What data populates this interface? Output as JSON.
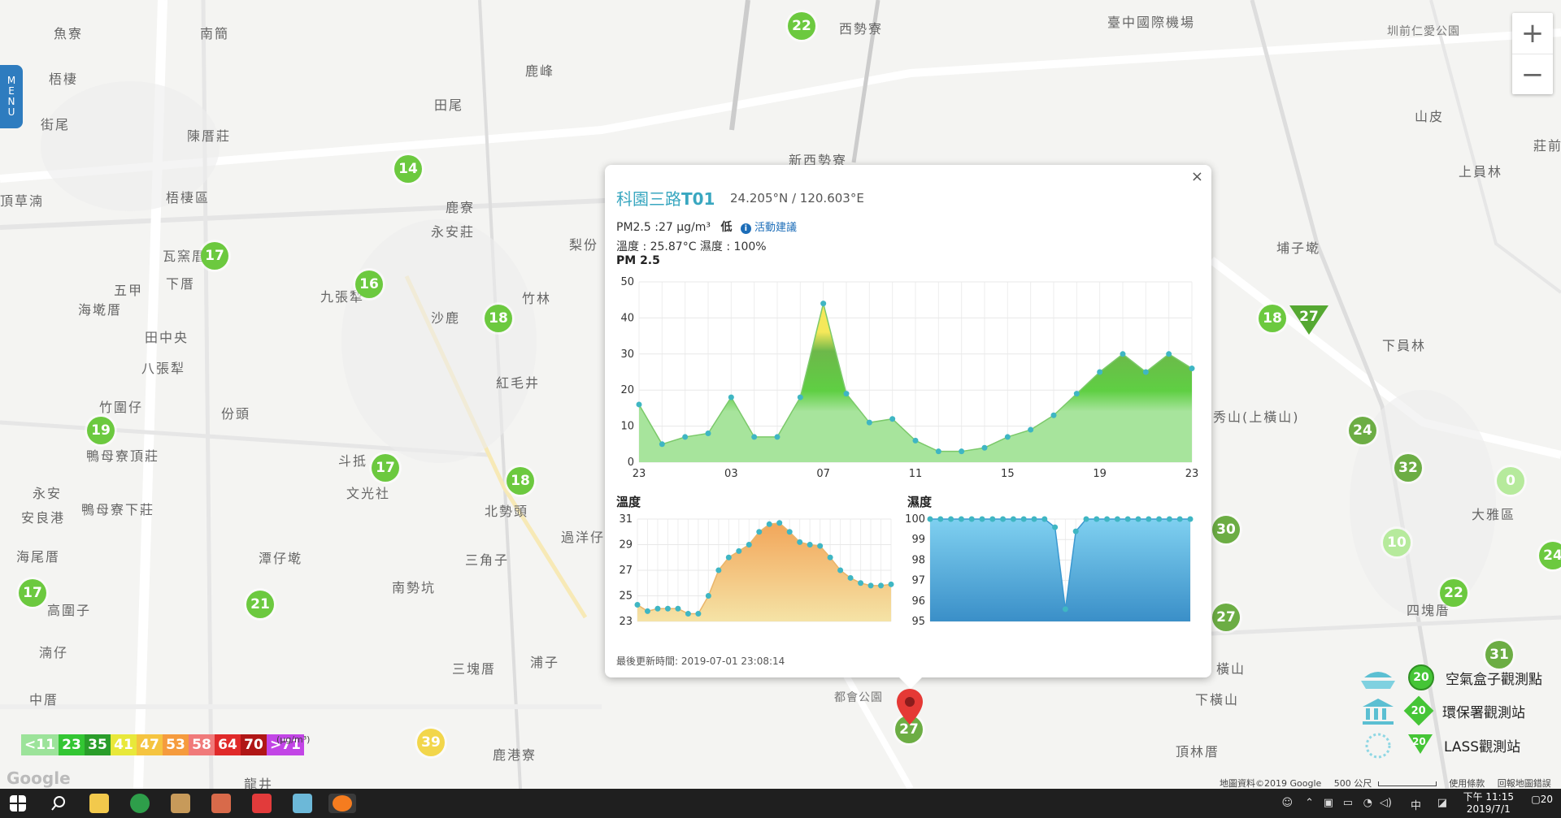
{
  "menu": {
    "label_chars": [
      "M",
      "E",
      "N",
      "U"
    ]
  },
  "zoom": {
    "in_label": "+",
    "out_label": "−"
  },
  "places": [
    {
      "name": "魚寮"
    },
    {
      "name": "南簡"
    },
    {
      "name": "西勢寮"
    },
    {
      "name": "臺中國際機場"
    },
    {
      "name": "圳前仁愛公園"
    },
    {
      "name": "梧棲"
    },
    {
      "name": "鹿峰"
    },
    {
      "name": "街尾"
    },
    {
      "name": "田尾"
    },
    {
      "name": "陳厝莊"
    },
    {
      "name": "新西勢寮"
    },
    {
      "name": "山皮"
    },
    {
      "name": "莊前"
    },
    {
      "name": "頂草湳"
    },
    {
      "name": "梧棲區"
    },
    {
      "name": "上員林"
    },
    {
      "name": "鹿寮"
    },
    {
      "name": "永安莊"
    },
    {
      "name": "梨份"
    },
    {
      "name": "瓦窯厝"
    },
    {
      "name": "埔子墘"
    },
    {
      "name": "五甲"
    },
    {
      "name": "下厝"
    },
    {
      "name": "海墘厝"
    },
    {
      "name": "九張犁"
    },
    {
      "name": "沙鹿"
    },
    {
      "name": "竹林"
    },
    {
      "name": "田中央"
    },
    {
      "name": "下員林"
    },
    {
      "name": "八張犁"
    },
    {
      "name": "紅毛井"
    },
    {
      "name": "竹圍仔"
    },
    {
      "name": "份頭"
    },
    {
      "name": "秀山(上橫山)"
    },
    {
      "name": "鴨母寮頂莊"
    },
    {
      "name": "斗抵"
    },
    {
      "name": "文光社"
    },
    {
      "name": "永安"
    },
    {
      "name": "北勢頭"
    },
    {
      "name": "大雅區"
    },
    {
      "name": "鴨母寮下莊"
    },
    {
      "name": "安良港"
    },
    {
      "name": "過洋仔"
    },
    {
      "name": "海尾厝"
    },
    {
      "name": "潭仔墘"
    },
    {
      "name": "三角子"
    },
    {
      "name": "南勢坑"
    },
    {
      "name": "高圍子"
    },
    {
      "name": "四塊厝"
    },
    {
      "name": "湳仔"
    },
    {
      "name": "三塊厝"
    },
    {
      "name": "浦子"
    },
    {
      "name": "中厝"
    },
    {
      "name": "鹿港寮"
    },
    {
      "name": "龍井"
    },
    {
      "name": "頂林厝"
    },
    {
      "name": "下橫山"
    },
    {
      "name": "都會公園"
    },
    {
      "name": "橫山"
    }
  ],
  "markers": [
    {
      "value": "22"
    },
    {
      "value": "14"
    },
    {
      "value": "17"
    },
    {
      "value": "16"
    },
    {
      "value": "18"
    },
    {
      "value": "18"
    },
    {
      "value": "18"
    },
    {
      "value": "27"
    },
    {
      "value": "19"
    },
    {
      "value": "17"
    },
    {
      "value": "17"
    },
    {
      "value": "21"
    },
    {
      "value": "39"
    },
    {
      "value": "24"
    },
    {
      "value": "32"
    },
    {
      "value": "0"
    },
    {
      "value": "10"
    },
    {
      "value": "30"
    },
    {
      "value": "27"
    },
    {
      "value": "22"
    },
    {
      "value": "31"
    },
    {
      "value": "27"
    },
    {
      "value": "24"
    }
  ],
  "popup": {
    "close": "×",
    "title_prefix": "科園三路",
    "title_id": "T01",
    "coords": "24.205°N / 120.603°E",
    "pm_text": "PM2.5 :27 µg/m³",
    "level": "低",
    "info_icon": "i",
    "advice": "活動建議",
    "temp_text": "溫度 : 25.87°C 濕度 : 100%",
    "pm_chart_title": "PM 2.5",
    "temp_chart_title": "溫度",
    "hum_chart_title": "濕度",
    "updated": "最後更新時間: 2019-07-01 23:08:14"
  },
  "chart_data": [
    {
      "type": "area",
      "title": "PM 2.5",
      "x": [
        "23",
        "00",
        "01",
        "02",
        "03",
        "04",
        "05",
        "06",
        "07",
        "08",
        "09",
        "10",
        "11",
        "12",
        "13",
        "14",
        "15",
        "16",
        "17",
        "18",
        "19",
        "20",
        "21",
        "22",
        "23"
      ],
      "xticks": [
        "23",
        "03",
        "07",
        "11",
        "15",
        "19",
        "23"
      ],
      "values": [
        16,
        5,
        7,
        8,
        18,
        7,
        7,
        18,
        44,
        19,
        11,
        12,
        6,
        3,
        3,
        4,
        7,
        9,
        13,
        19,
        25,
        30,
        25,
        30,
        26
      ],
      "ylim": [
        0,
        50
      ],
      "yticks": [
        0,
        10,
        20,
        30,
        40,
        50
      ],
      "colors": {
        "low": "#a7e49c",
        "mid": "#5fcf43",
        "high": "#f5e85a",
        "dot": "#3fb6c3"
      }
    },
    {
      "type": "area",
      "title": "溫度",
      "values": [
        24.3,
        23.8,
        24.0,
        24.0,
        24.0,
        23.6,
        23.6,
        25.0,
        27.0,
        28.0,
        28.5,
        29.0,
        30.0,
        30.6,
        30.7,
        30.0,
        29.2,
        29.0,
        28.9,
        28.0,
        27.0,
        26.4,
        26.0,
        25.8,
        25.8,
        25.9
      ],
      "ylim": [
        23,
        31
      ],
      "yticks": [
        23,
        25,
        27,
        29,
        31
      ],
      "colors": {
        "fill": "#f4bf75",
        "dot": "#3fb6c3"
      }
    },
    {
      "type": "area",
      "title": "濕度",
      "values": [
        100,
        100,
        100,
        100,
        100,
        100,
        100,
        100,
        100,
        100,
        100,
        100,
        99.6,
        95.6,
        99.4,
        100,
        100,
        100,
        100,
        100,
        100,
        100,
        100,
        100,
        100,
        100
      ],
      "ylim": [
        95,
        100
      ],
      "yticks": [
        95,
        96,
        97,
        98,
        99,
        100
      ],
      "colors": {
        "fill": "#4fa6d9",
        "dot": "#3fb6c3"
      }
    }
  ],
  "legend": {
    "airbox": {
      "value": "20",
      "label": "空氣盒子觀測點"
    },
    "epa": {
      "value": "20",
      "label": "環保署觀測站"
    },
    "lass": {
      "value": "20",
      "label": "LASS觀測站"
    }
  },
  "scale": {
    "unit": "(µg/m³)",
    "cells": [
      {
        "label": "<11",
        "color": "#9ce39a"
      },
      {
        "label": "23",
        "color": "#33c633"
      },
      {
        "label": "35",
        "color": "#2a9d2a"
      },
      {
        "label": "41",
        "color": "#e8e83a"
      },
      {
        "label": "47",
        "color": "#f5c440"
      },
      {
        "label": "53",
        "color": "#f59b3e"
      },
      {
        "label": "58",
        "color": "#f07a7a"
      },
      {
        "label": "64",
        "color": "#e02a2a"
      },
      {
        "label": "70",
        "color": "#b01616"
      },
      {
        "label": ">71",
        "color": "#c245e6"
      }
    ]
  },
  "google": "Google",
  "attribution": {
    "data": "地圖資料©2019 Google",
    "scale": "500 公尺",
    "terms": "使用條款",
    "report": "回報地圖錯誤"
  },
  "taskbar": {
    "time": "下午 11:15",
    "date": "2019/7/1",
    "lang": "中",
    "notif": "20"
  }
}
